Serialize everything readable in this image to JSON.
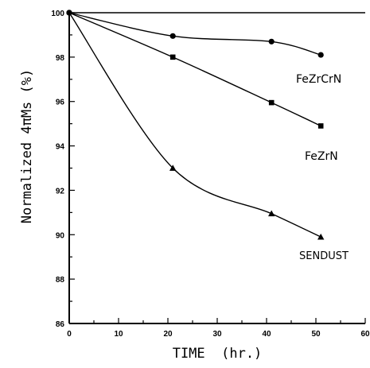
{
  "chart_data": {
    "type": "line",
    "title": "",
    "xlabel": "TIME  (hr.)",
    "ylabel": "Normalized 4πMs (%)",
    "xlim": [
      0,
      60
    ],
    "ylim": [
      86,
      100
    ],
    "x_ticks": [
      "0",
      "10",
      "20",
      "30",
      "40",
      "50",
      "60"
    ],
    "y_ticks": [
      "86",
      "88",
      "90",
      "92",
      "94",
      "96",
      "98",
      "100"
    ],
    "grid": false,
    "legend": "direct labels",
    "series": [
      {
        "name": "FeZrCrN",
        "marker": "circle",
        "x": [
          0,
          21,
          41,
          51
        ],
        "y": [
          100,
          98.95,
          98.7,
          98.1
        ]
      },
      {
        "name": "FeZrN",
        "marker": "square",
        "x": [
          0,
          21,
          41,
          51
        ],
        "y": [
          100,
          98,
          95.95,
          94.9
        ]
      },
      {
        "name": "SENDUST",
        "marker": "triangle",
        "x": [
          0,
          21,
          41,
          51
        ],
        "y": [
          100,
          93,
          90.95,
          89.9
        ]
      }
    ]
  }
}
